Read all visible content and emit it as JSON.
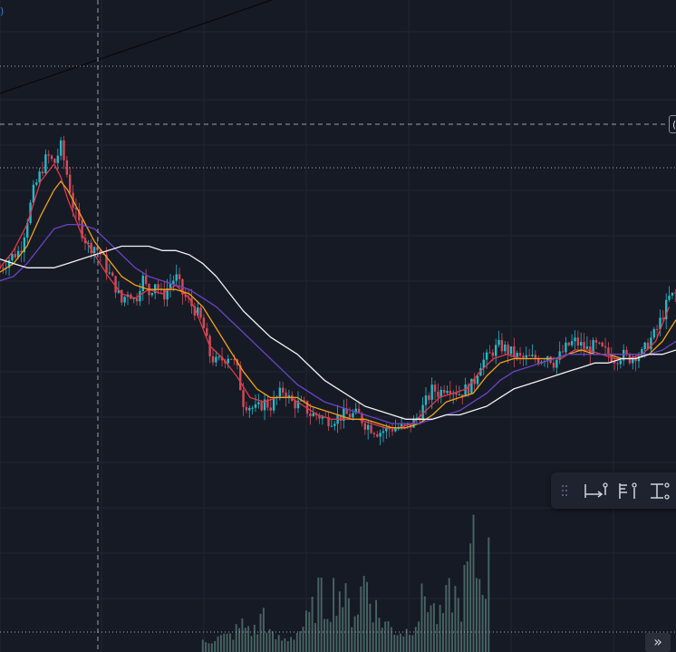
{
  "corner_label": ")",
  "scale_badge_text": "(",
  "scroll_button_glyph": "»",
  "colors": {
    "background": "#161a25",
    "grid": "#222633",
    "up_candle": "#25b9c9",
    "down_candle": "#d14b59",
    "ma_fast": "#e03a4a",
    "ma_medium": "#f0a21a",
    "ma_slow": "#6a44c4",
    "ma_long": "#f2f2f2",
    "volume": "#5a7d7a",
    "trendline": "#0a0a0f"
  },
  "toolbar": {
    "icons": [
      "drag-handle-icon",
      "long-position-icon",
      "price-range-icon",
      "date-price-range-icon"
    ]
  },
  "chart_data": {
    "type": "candlestick",
    "title": "",
    "xlabel": "",
    "ylabel": "",
    "xlim": [
      0,
      100
    ],
    "ylim": [
      0,
      100
    ],
    "grid": true,
    "close_path": [
      [
        0,
        58
      ],
      [
        2,
        61
      ],
      [
        3,
        62
      ],
      [
        4,
        69
      ],
      [
        5,
        76
      ],
      [
        6,
        80
      ],
      [
        7,
        84
      ],
      [
        8,
        82
      ],
      [
        9,
        86
      ],
      [
        10,
        79
      ],
      [
        11,
        71
      ],
      [
        12,
        67
      ],
      [
        13,
        63
      ],
      [
        14,
        63
      ],
      [
        15,
        61
      ],
      [
        16,
        57
      ],
      [
        17,
        54
      ],
      [
        18,
        50
      ],
      [
        19,
        53
      ],
      [
        20,
        50
      ],
      [
        21,
        56
      ],
      [
        22,
        52
      ],
      [
        23,
        55
      ],
      [
        24,
        51
      ],
      [
        25,
        54
      ],
      [
        26,
        56
      ],
      [
        27,
        52
      ],
      [
        28,
        50
      ],
      [
        29,
        48
      ],
      [
        30,
        45
      ],
      [
        31,
        38
      ],
      [
        32,
        36
      ],
      [
        34,
        38
      ],
      [
        35,
        35
      ],
      [
        36,
        27
      ],
      [
        37,
        26
      ],
      [
        38,
        25
      ],
      [
        39,
        27
      ],
      [
        40,
        26
      ],
      [
        41,
        28
      ],
      [
        42,
        30
      ],
      [
        43,
        27
      ],
      [
        45,
        26
      ],
      [
        46,
        24
      ],
      [
        47,
        24
      ],
      [
        48,
        23
      ],
      [
        49,
        23
      ],
      [
        51,
        24
      ],
      [
        53,
        24
      ],
      [
        54,
        22
      ],
      [
        55,
        21
      ],
      [
        56,
        20
      ],
      [
        58,
        21
      ],
      [
        60,
        21
      ],
      [
        61,
        22
      ],
      [
        62,
        24
      ],
      [
        63,
        27
      ],
      [
        64,
        30
      ],
      [
        65,
        29
      ],
      [
        66,
        31
      ],
      [
        67,
        30
      ],
      [
        68,
        29
      ],
      [
        70,
        31
      ],
      [
        71,
        36
      ],
      [
        72,
        37
      ],
      [
        73,
        39
      ],
      [
        74,
        40
      ],
      [
        75,
        39
      ],
      [
        76,
        38
      ],
      [
        77,
        37
      ],
      [
        78,
        37
      ],
      [
        80,
        37
      ],
      [
        81,
        38
      ],
      [
        82,
        36
      ],
      [
        83,
        38
      ],
      [
        84,
        40
      ],
      [
        85,
        41
      ],
      [
        86,
        40
      ],
      [
        87,
        39
      ],
      [
        88,
        40
      ],
      [
        90,
        38
      ],
      [
        91,
        37
      ],
      [
        92,
        38
      ],
      [
        93,
        37
      ],
      [
        94,
        38
      ],
      [
        95,
        38
      ],
      [
        96,
        41
      ],
      [
        97,
        43
      ],
      [
        98,
        47
      ],
      [
        99,
        51
      ],
      [
        100,
        52
      ]
    ],
    "series": [
      {
        "key": "ma_fast",
        "values": [
          [
            0,
            58
          ],
          [
            2,
            62
          ],
          [
            4,
            68
          ],
          [
            6,
            78
          ],
          [
            8,
            82
          ],
          [
            9,
            79
          ],
          [
            10,
            74
          ],
          [
            12,
            66
          ],
          [
            14,
            61
          ],
          [
            16,
            56
          ],
          [
            18,
            52
          ],
          [
            20,
            51
          ],
          [
            22,
            53
          ],
          [
            24,
            52
          ],
          [
            26,
            54
          ],
          [
            28,
            51
          ],
          [
            29,
            48
          ],
          [
            31,
            40
          ],
          [
            33,
            37
          ],
          [
            35,
            33
          ],
          [
            37,
            28
          ],
          [
            39,
            27
          ],
          [
            41,
            28
          ],
          [
            43,
            28
          ],
          [
            45,
            26
          ],
          [
            47,
            24
          ],
          [
            49,
            23
          ],
          [
            51,
            23
          ],
          [
            53,
            23
          ],
          [
            55,
            22
          ],
          [
            57,
            21
          ],
          [
            59,
            21
          ],
          [
            61,
            22
          ],
          [
            63,
            25
          ],
          [
            65,
            28
          ],
          [
            67,
            29
          ],
          [
            69,
            30
          ],
          [
            71,
            34
          ],
          [
            73,
            37
          ],
          [
            75,
            38
          ],
          [
            77,
            37
          ],
          [
            79,
            37
          ],
          [
            81,
            37
          ],
          [
            83,
            37
          ],
          [
            85,
            39
          ],
          [
            87,
            39
          ],
          [
            89,
            38
          ],
          [
            91,
            37
          ],
          [
            93,
            37
          ],
          [
            95,
            38
          ],
          [
            97,
            41
          ],
          [
            99,
            49
          ]
        ]
      },
      {
        "key": "ma_medium",
        "values": [
          [
            0,
            57
          ],
          [
            2,
            59
          ],
          [
            4,
            63
          ],
          [
            6,
            70
          ],
          [
            8,
            76
          ],
          [
            9,
            78
          ],
          [
            10,
            76
          ],
          [
            12,
            70
          ],
          [
            14,
            64
          ],
          [
            16,
            60
          ],
          [
            18,
            56
          ],
          [
            20,
            54
          ],
          [
            22,
            53
          ],
          [
            24,
            53
          ],
          [
            26,
            53
          ],
          [
            28,
            52
          ],
          [
            30,
            49
          ],
          [
            32,
            44
          ],
          [
            34,
            39
          ],
          [
            36,
            34
          ],
          [
            38,
            30
          ],
          [
            40,
            28
          ],
          [
            42,
            28
          ],
          [
            44,
            28
          ],
          [
            46,
            26
          ],
          [
            48,
            25
          ],
          [
            50,
            24
          ],
          [
            52,
            23
          ],
          [
            54,
            23
          ],
          [
            56,
            22
          ],
          [
            58,
            21
          ],
          [
            60,
            21
          ],
          [
            62,
            22
          ],
          [
            64,
            24
          ],
          [
            66,
            27
          ],
          [
            68,
            28
          ],
          [
            70,
            29
          ],
          [
            72,
            33
          ],
          [
            74,
            36
          ],
          [
            76,
            37
          ],
          [
            78,
            37
          ],
          [
            80,
            37
          ],
          [
            82,
            37
          ],
          [
            84,
            38
          ],
          [
            86,
            39
          ],
          [
            88,
            38
          ],
          [
            90,
            38
          ],
          [
            92,
            37
          ],
          [
            94,
            37
          ],
          [
            96,
            38
          ],
          [
            98,
            41
          ],
          [
            100,
            46
          ]
        ]
      },
      {
        "key": "ma_slow",
        "values": [
          [
            0,
            55
          ],
          [
            2,
            56
          ],
          [
            4,
            59
          ],
          [
            6,
            63
          ],
          [
            8,
            67
          ],
          [
            10,
            68
          ],
          [
            12,
            68
          ],
          [
            14,
            67
          ],
          [
            16,
            64
          ],
          [
            18,
            61
          ],
          [
            20,
            58
          ],
          [
            22,
            56
          ],
          [
            24,
            55
          ],
          [
            26,
            54
          ],
          [
            28,
            53
          ],
          [
            30,
            51
          ],
          [
            32,
            49
          ],
          [
            34,
            46
          ],
          [
            36,
            43
          ],
          [
            38,
            40
          ],
          [
            40,
            37
          ],
          [
            42,
            34
          ],
          [
            44,
            31
          ],
          [
            46,
            29
          ],
          [
            48,
            27
          ],
          [
            50,
            26
          ],
          [
            52,
            25
          ],
          [
            54,
            24
          ],
          [
            56,
            23
          ],
          [
            58,
            22
          ],
          [
            60,
            22
          ],
          [
            62,
            22
          ],
          [
            64,
            23
          ],
          [
            66,
            24
          ],
          [
            68,
            25
          ],
          [
            70,
            27
          ],
          [
            72,
            29
          ],
          [
            74,
            32
          ],
          [
            76,
            34
          ],
          [
            78,
            35
          ],
          [
            80,
            36
          ],
          [
            82,
            37
          ],
          [
            84,
            38
          ],
          [
            86,
            38
          ],
          [
            88,
            38
          ],
          [
            90,
            38
          ],
          [
            92,
            38
          ],
          [
            94,
            38
          ],
          [
            96,
            38
          ],
          [
            98,
            39
          ],
          [
            100,
            41
          ]
        ]
      },
      {
        "key": "ma_long",
        "values": [
          [
            0,
            60
          ],
          [
            2,
            59
          ],
          [
            4,
            58
          ],
          [
            6,
            58
          ],
          [
            8,
            58
          ],
          [
            10,
            59
          ],
          [
            12,
            60
          ],
          [
            14,
            61
          ],
          [
            16,
            62
          ],
          [
            18,
            63
          ],
          [
            20,
            63
          ],
          [
            22,
            63
          ],
          [
            24,
            62
          ],
          [
            26,
            62
          ],
          [
            28,
            61
          ],
          [
            30,
            59
          ],
          [
            32,
            56
          ],
          [
            34,
            52
          ],
          [
            36,
            48
          ],
          [
            38,
            45
          ],
          [
            40,
            42
          ],
          [
            42,
            40
          ],
          [
            44,
            38
          ],
          [
            46,
            35
          ],
          [
            48,
            32
          ],
          [
            50,
            30
          ],
          [
            52,
            28
          ],
          [
            54,
            26
          ],
          [
            56,
            25
          ],
          [
            58,
            24
          ],
          [
            60,
            23
          ],
          [
            62,
            23
          ],
          [
            64,
            23
          ],
          [
            66,
            24
          ],
          [
            68,
            24
          ],
          [
            70,
            25
          ],
          [
            72,
            26
          ],
          [
            74,
            28
          ],
          [
            76,
            30
          ],
          [
            78,
            31
          ],
          [
            80,
            32
          ],
          [
            82,
            33
          ],
          [
            84,
            34
          ],
          [
            86,
            35
          ],
          [
            88,
            36
          ],
          [
            90,
            36
          ],
          [
            92,
            37
          ],
          [
            94,
            37
          ],
          [
            96,
            38
          ],
          [
            98,
            38
          ],
          [
            100,
            39
          ]
        ]
      }
    ],
    "volume_profile": [
      [
        30,
        3
      ],
      [
        34,
        4
      ],
      [
        36,
        7
      ],
      [
        38,
        5
      ],
      [
        39,
        11
      ],
      [
        40,
        4
      ],
      [
        42,
        3
      ],
      [
        44,
        5
      ],
      [
        46,
        9
      ],
      [
        47,
        15
      ],
      [
        48,
        12
      ],
      [
        49,
        14
      ],
      [
        50,
        17
      ],
      [
        51,
        13
      ],
      [
        52,
        10
      ],
      [
        53,
        12
      ],
      [
        54,
        20
      ],
      [
        55,
        14
      ],
      [
        56,
        9
      ],
      [
        58,
        6
      ],
      [
        60,
        5
      ],
      [
        62,
        10
      ],
      [
        63,
        16
      ],
      [
        64,
        11
      ],
      [
        65,
        8
      ],
      [
        66,
        12
      ],
      [
        67,
        16
      ],
      [
        68,
        11
      ],
      [
        69,
        19
      ],
      [
        70,
        26
      ],
      [
        71,
        18
      ],
      [
        72,
        22
      ]
    ]
  }
}
